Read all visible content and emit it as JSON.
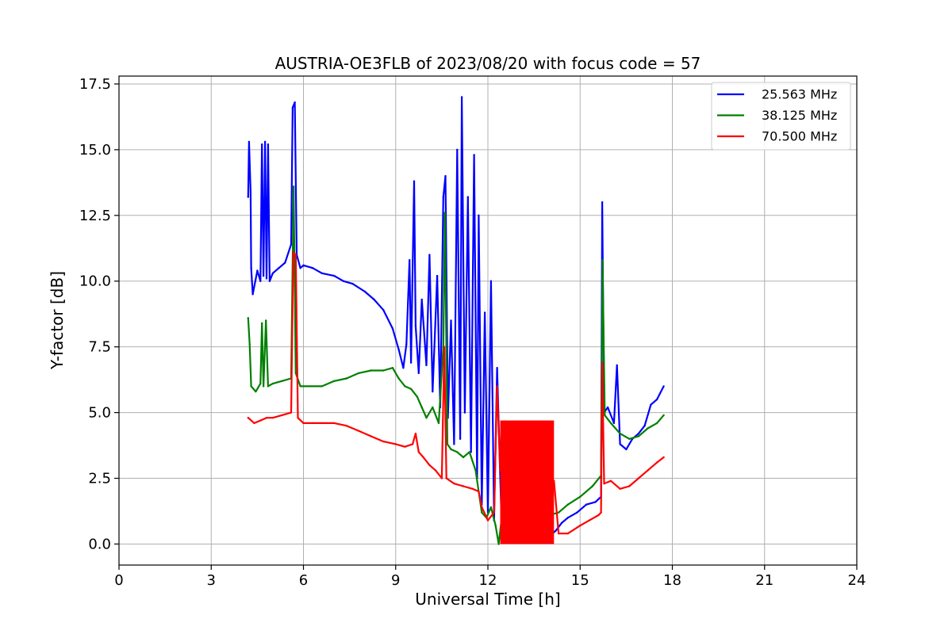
{
  "chart_data": {
    "type": "line",
    "title": "AUSTRIA-OE3FLB of 2023/08/20 with focus code = 57",
    "xlabel": "Universal Time [h]",
    "ylabel": "Y-factor [dB]",
    "xlim": [
      0,
      24
    ],
    "ylim": [
      -0.8,
      17.8
    ],
    "xticks": [
      0,
      3,
      6,
      9,
      12,
      15,
      18,
      21,
      24
    ],
    "xtick_labels": [
      "0",
      "3",
      "6",
      "9",
      "12",
      "15",
      "18",
      "21",
      "24"
    ],
    "yticks": [
      0,
      2.5,
      5,
      7.5,
      10,
      12.5,
      15,
      17.5
    ],
    "ytick_labels": [
      "0.0",
      "2.5",
      "5.0",
      "7.5",
      "10.0",
      "12.5",
      "15.0",
      "17.5"
    ],
    "grid": true,
    "legend_position": "top-right",
    "series": [
      {
        "name": "25.563 MHz",
        "color": "#0000ff",
        "points": [
          [
            4.2,
            13.2
          ],
          [
            4.23,
            15.3
          ],
          [
            4.28,
            13.4
          ],
          [
            4.3,
            10.5
          ],
          [
            4.35,
            9.5
          ],
          [
            4.5,
            10.4
          ],
          [
            4.6,
            10.0
          ],
          [
            4.65,
            15.2
          ],
          [
            4.7,
            10.2
          ],
          [
            4.75,
            15.3
          ],
          [
            4.8,
            10.1
          ],
          [
            4.85,
            15.2
          ],
          [
            4.9,
            10.0
          ],
          [
            5.0,
            10.3
          ],
          [
            5.2,
            10.5
          ],
          [
            5.4,
            10.7
          ],
          [
            5.6,
            11.4
          ],
          [
            5.65,
            16.6
          ],
          [
            5.72,
            16.8
          ],
          [
            5.78,
            11.0
          ],
          [
            5.9,
            10.5
          ],
          [
            6.0,
            10.6
          ],
          [
            6.3,
            10.5
          ],
          [
            6.6,
            10.3
          ],
          [
            7.0,
            10.2
          ],
          [
            7.3,
            10.0
          ],
          [
            7.6,
            9.9
          ],
          [
            8.0,
            9.6
          ],
          [
            8.3,
            9.3
          ],
          [
            8.6,
            8.9
          ],
          [
            8.9,
            8.2
          ],
          [
            9.1,
            7.4
          ],
          [
            9.25,
            6.7
          ],
          [
            9.35,
            7.6
          ],
          [
            9.45,
            10.8
          ],
          [
            9.5,
            6.9
          ],
          [
            9.6,
            13.8
          ],
          [
            9.65,
            8.3
          ],
          [
            9.75,
            6.5
          ],
          [
            9.85,
            9.3
          ],
          [
            10.0,
            6.8
          ],
          [
            10.1,
            11.0
          ],
          [
            10.2,
            5.8
          ],
          [
            10.35,
            10.2
          ],
          [
            10.45,
            5.2
          ],
          [
            10.55,
            13.2
          ],
          [
            10.62,
            14.0
          ],
          [
            10.7,
            4.8
          ],
          [
            10.8,
            8.5
          ],
          [
            10.9,
            3.8
          ],
          [
            11.0,
            15.0
          ],
          [
            11.1,
            4.0
          ],
          [
            11.15,
            17.0
          ],
          [
            11.25,
            5.0
          ],
          [
            11.35,
            13.2
          ],
          [
            11.45,
            3.5
          ],
          [
            11.55,
            14.8
          ],
          [
            11.65,
            2.5
          ],
          [
            11.7,
            12.5
          ],
          [
            11.8,
            1.5
          ],
          [
            11.9,
            8.8
          ],
          [
            12.0,
            1.2
          ],
          [
            12.1,
            10.0
          ],
          [
            12.2,
            0.9
          ],
          [
            12.3,
            6.7
          ],
          [
            12.45,
            0.6
          ],
          [
            12.6,
            1.0
          ],
          [
            12.8,
            0.8
          ],
          [
            13.0,
            1.0
          ],
          [
            13.3,
            0.6
          ],
          [
            13.6,
            0.3
          ],
          [
            13.9,
            0.2
          ],
          [
            14.2,
            0.5
          ],
          [
            14.4,
            0.8
          ],
          [
            14.6,
            1.0
          ],
          [
            14.9,
            1.2
          ],
          [
            15.2,
            1.5
          ],
          [
            15.5,
            1.6
          ],
          [
            15.68,
            1.8
          ],
          [
            15.72,
            13.0
          ],
          [
            15.78,
            5.0
          ],
          [
            15.9,
            5.2
          ],
          [
            16.1,
            4.6
          ],
          [
            16.2,
            6.8
          ],
          [
            16.3,
            3.8
          ],
          [
            16.5,
            3.6
          ],
          [
            16.7,
            4.0
          ],
          [
            16.9,
            4.2
          ],
          [
            17.1,
            4.5
          ],
          [
            17.3,
            5.3
          ],
          [
            17.5,
            5.5
          ],
          [
            17.72,
            6.0
          ]
        ]
      },
      {
        "name": "38.125 MHz",
        "color": "#008000",
        "points": [
          [
            4.2,
            8.6
          ],
          [
            4.25,
            7.6
          ],
          [
            4.3,
            6.0
          ],
          [
            4.45,
            5.8
          ],
          [
            4.6,
            6.1
          ],
          [
            4.65,
            8.4
          ],
          [
            4.7,
            6.0
          ],
          [
            4.78,
            8.5
          ],
          [
            4.85,
            6.0
          ],
          [
            5.0,
            6.1
          ],
          [
            5.3,
            6.2
          ],
          [
            5.6,
            6.3
          ],
          [
            5.68,
            13.6
          ],
          [
            5.75,
            6.5
          ],
          [
            5.9,
            6.0
          ],
          [
            6.2,
            6.0
          ],
          [
            6.6,
            6.0
          ],
          [
            7.0,
            6.2
          ],
          [
            7.4,
            6.3
          ],
          [
            7.8,
            6.5
          ],
          [
            8.2,
            6.6
          ],
          [
            8.6,
            6.6
          ],
          [
            8.9,
            6.7
          ],
          [
            9.1,
            6.3
          ],
          [
            9.3,
            6.0
          ],
          [
            9.5,
            5.9
          ],
          [
            9.7,
            5.6
          ],
          [
            9.85,
            5.2
          ],
          [
            10.0,
            4.8
          ],
          [
            10.2,
            5.2
          ],
          [
            10.4,
            4.6
          ],
          [
            10.55,
            7.5
          ],
          [
            10.6,
            12.6
          ],
          [
            10.68,
            3.8
          ],
          [
            10.8,
            3.6
          ],
          [
            11.0,
            3.5
          ],
          [
            11.2,
            3.3
          ],
          [
            11.4,
            3.5
          ],
          [
            11.6,
            2.8
          ],
          [
            11.7,
            2.0
          ],
          [
            11.8,
            1.2
          ],
          [
            11.95,
            1.0
          ],
          [
            12.1,
            1.4
          ],
          [
            12.25,
            0.7
          ],
          [
            12.35,
            0.0
          ],
          [
            12.45,
            1.0
          ],
          [
            12.7,
            0.9
          ],
          [
            13.0,
            0.9
          ],
          [
            13.5,
            1.0
          ],
          [
            14.0,
            1.1
          ],
          [
            14.3,
            1.2
          ],
          [
            14.6,
            1.5
          ],
          [
            15.0,
            1.8
          ],
          [
            15.4,
            2.2
          ],
          [
            15.68,
            2.6
          ],
          [
            15.73,
            10.8
          ],
          [
            15.8,
            4.9
          ],
          [
            16.0,
            4.6
          ],
          [
            16.3,
            4.2
          ],
          [
            16.6,
            4.0
          ],
          [
            16.9,
            4.1
          ],
          [
            17.2,
            4.4
          ],
          [
            17.5,
            4.6
          ],
          [
            17.72,
            4.9
          ]
        ]
      },
      {
        "name": "70.500 MHz",
        "color": "#ff0000",
        "points": [
          [
            4.2,
            4.8
          ],
          [
            4.4,
            4.6
          ],
          [
            4.6,
            4.7
          ],
          [
            4.8,
            4.8
          ],
          [
            5.0,
            4.8
          ],
          [
            5.3,
            4.9
          ],
          [
            5.6,
            5.0
          ],
          [
            5.67,
            11.1
          ],
          [
            5.75,
            11.0
          ],
          [
            5.82,
            4.8
          ],
          [
            6.0,
            4.6
          ],
          [
            6.3,
            4.6
          ],
          [
            6.6,
            4.6
          ],
          [
            7.0,
            4.6
          ],
          [
            7.4,
            4.5
          ],
          [
            7.8,
            4.3
          ],
          [
            8.2,
            4.1
          ],
          [
            8.6,
            3.9
          ],
          [
            9.0,
            3.8
          ],
          [
            9.3,
            3.7
          ],
          [
            9.55,
            3.8
          ],
          [
            9.65,
            4.2
          ],
          [
            9.75,
            3.5
          ],
          [
            9.9,
            3.3
          ],
          [
            10.1,
            3.0
          ],
          [
            10.3,
            2.8
          ],
          [
            10.5,
            2.5
          ],
          [
            10.58,
            7.5
          ],
          [
            10.65,
            2.5
          ],
          [
            10.9,
            2.3
          ],
          [
            11.2,
            2.2
          ],
          [
            11.5,
            2.1
          ],
          [
            11.7,
            2.0
          ],
          [
            11.8,
            1.4
          ],
          [
            12.0,
            0.9
          ],
          [
            12.2,
            1.2
          ],
          [
            12.3,
            6.0
          ],
          [
            12.4,
            2.8
          ],
          [
            12.6,
            2.6
          ],
          [
            12.8,
            2.4
          ],
          [
            13.0,
            2.4
          ],
          [
            13.3,
            2.4
          ],
          [
            13.6,
            2.4
          ],
          [
            13.9,
            2.4
          ],
          [
            14.15,
            2.4
          ],
          [
            14.3,
            0.4
          ],
          [
            14.6,
            0.4
          ],
          [
            15.0,
            0.7
          ],
          [
            15.3,
            0.9
          ],
          [
            15.6,
            1.1
          ],
          [
            15.68,
            1.2
          ],
          [
            15.72,
            6.9
          ],
          [
            15.78,
            2.3
          ],
          [
            16.0,
            2.4
          ],
          [
            16.3,
            2.1
          ],
          [
            16.6,
            2.2
          ],
          [
            16.9,
            2.5
          ],
          [
            17.2,
            2.8
          ],
          [
            17.5,
            3.1
          ],
          [
            17.72,
            3.3
          ]
        ]
      }
    ],
    "dense_bands": [
      {
        "series": 2,
        "x": [
          12.4,
          14.15
        ],
        "y": [
          0.0,
          4.7
        ]
      }
    ]
  }
}
